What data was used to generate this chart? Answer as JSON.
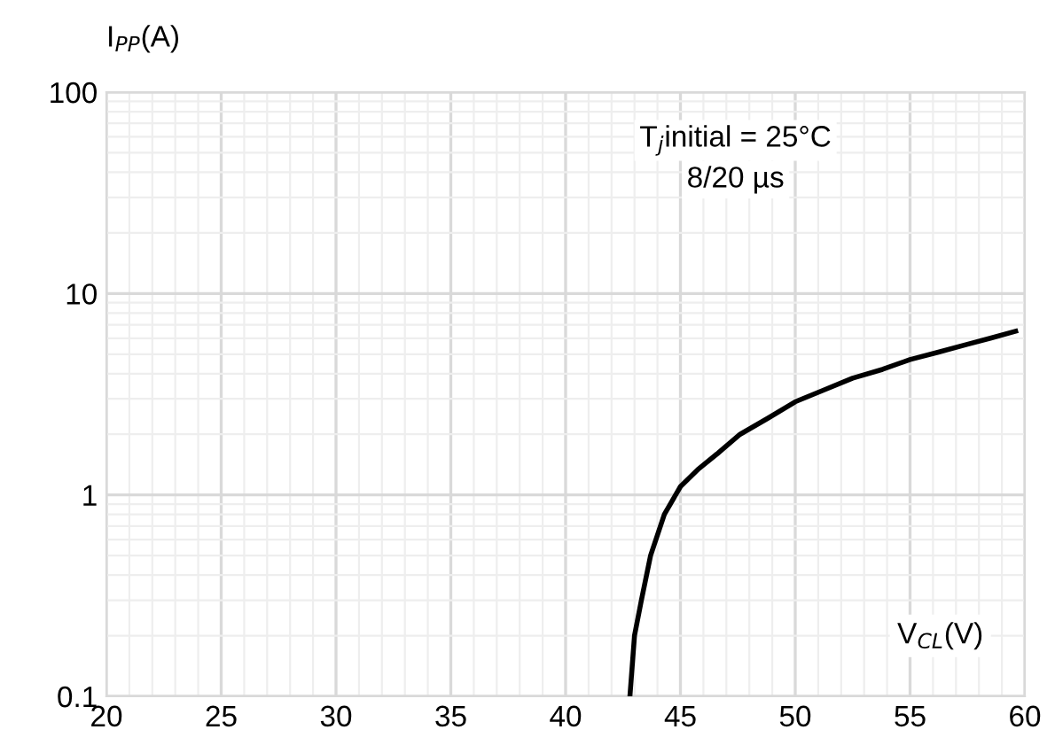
{
  "chart_data": {
    "type": "line",
    "xlabel": "V$_{CL}$(V)",
    "ylabel": "I$_{PP}$(A)",
    "annotations": [
      "T$_{j}$initial = 25°C",
      "8/20 µs"
    ],
    "x": [
      42.8,
      43.0,
      43.3,
      43.7,
      44.3,
      45.0,
      45.8,
      46.6,
      47.6,
      48.8,
      50,
      51.2,
      52.5,
      53.8,
      55,
      56.2,
      57.5,
      58.5,
      59.6
    ],
    "series": [
      {
        "color": "#000000",
        "values": [
          0.1,
          0.2,
          0.3,
          0.5,
          0.8,
          1.1,
          1.35,
          1.6,
          2.0,
          2.4,
          2.9,
          3.3,
          3.8,
          4.2,
          4.7,
          5.1,
          5.6,
          6.0,
          6.5
        ]
      }
    ],
    "xlim": [
      20,
      60
    ],
    "ylim": [
      0.1,
      100
    ],
    "xticks": [
      20,
      25,
      30,
      35,
      40,
      45,
      50,
      55,
      60
    ],
    "yticks": [
      0.1,
      1,
      10,
      100
    ],
    "log": true,
    "grid": true,
    "legend": false,
    "marker": "none",
    "line_style": "solid"
  }
}
